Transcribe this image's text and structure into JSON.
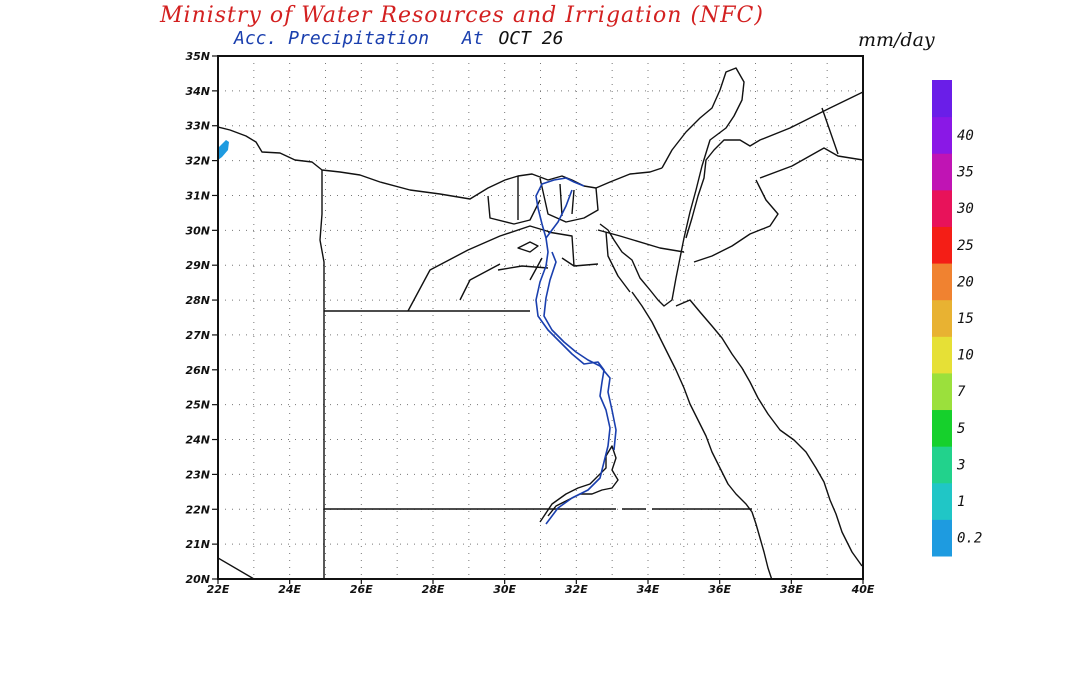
{
  "header": {
    "title": "Ministry of Water Resources and Irrigation (NFC)",
    "title_color": "#d32020",
    "subtitle_product": "Acc. Precipitation",
    "subtitle_at": "At",
    "subtitle_date": "OCT 26",
    "subtitle_color": "#1a3fae",
    "units": "mm/day"
  },
  "map": {
    "region": "Egypt",
    "lon_range": [
      22,
      40
    ],
    "lat_range": [
      20,
      35
    ],
    "lat_labels": [
      "35N",
      "34N",
      "33N",
      "32N",
      "31N",
      "30N",
      "29N",
      "28N",
      "27N",
      "26N",
      "25N",
      "24N",
      "23N",
      "22N",
      "21N",
      "20N"
    ],
    "lon_labels": [
      "22E",
      "24E",
      "26E",
      "28E",
      "30E",
      "32E",
      "34E",
      "36E",
      "38E",
      "40E"
    ],
    "grid_style": "dotted",
    "nile_color": "#1a3fae",
    "precip_patch_color": "#1e9be0"
  },
  "legend": {
    "colors": [
      "#1e9be0",
      "#20c6c6",
      "#22d28c",
      "#16d02c",
      "#9be03c",
      "#e6e036",
      "#e8b232",
      "#f08230",
      "#f41e16",
      "#e8125a",
      "#c014b4",
      "#8a18e6",
      "#6a1ee8"
    ],
    "labels": [
      "0.2",
      "1",
      "3",
      "5",
      "7",
      "10",
      "15",
      "20",
      "25",
      "30",
      "35",
      "40"
    ]
  }
}
